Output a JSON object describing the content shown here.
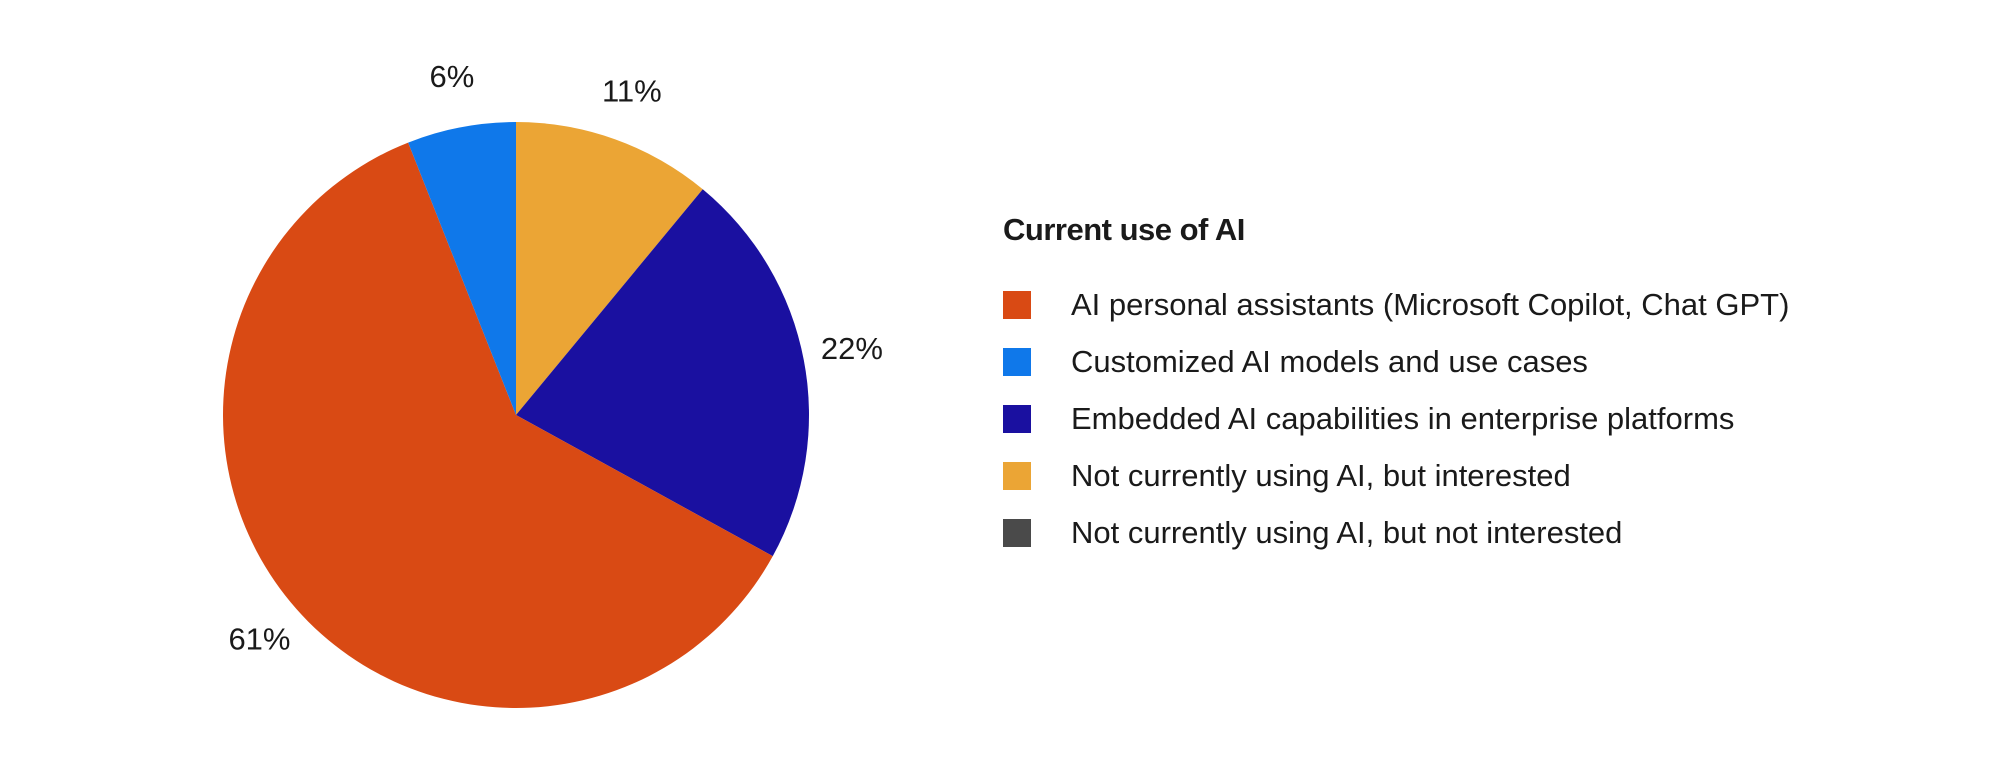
{
  "chart_data": {
    "type": "pie",
    "title": "",
    "legend_title": "Current use of AI",
    "legend_position": "right",
    "start_angle_deg": 0,
    "direction": "clockwise",
    "slices": [
      {
        "label": "Not currently using AI, but interested",
        "value": 11,
        "display": "11%",
        "color": "#EBA535"
      },
      {
        "label": "Embedded AI capabilities in enterprise platforms",
        "value": 22,
        "display": "22%",
        "color": "#1A10A0"
      },
      {
        "label": "AI personal assistants (Microsoft Copilot, Chat GPT)",
        "value": 61,
        "display": "61%",
        "color": "#D94A14"
      },
      {
        "label": "Customized AI models and use cases",
        "value": 6,
        "display": "6%",
        "color": "#0F78EA"
      }
    ],
    "legend": [
      {
        "label": "AI personal assistants (Microsoft Copilot, Chat GPT)",
        "color": "#D94A14"
      },
      {
        "label": "Customized AI models and use cases",
        "color": "#0F78EA"
      },
      {
        "label": "Embedded AI capabilities in enterprise platforms",
        "color": "#1A10A0"
      },
      {
        "label": "Not currently using AI, but interested",
        "color": "#EBA535"
      },
      {
        "label": "Not currently using AI, but not interested",
        "color": "#4A4A4A"
      }
    ]
  }
}
